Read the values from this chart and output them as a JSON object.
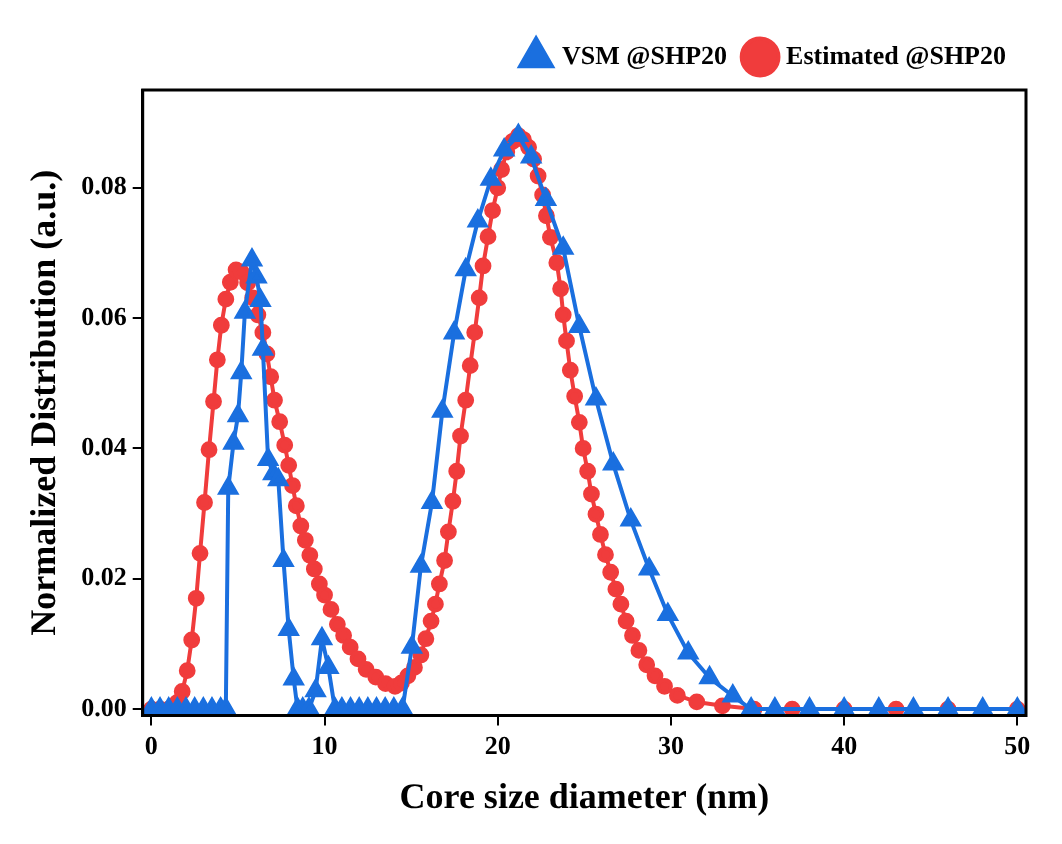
{
  "chart_data": {
    "type": "line",
    "xlabel": "Core size diameter (nm)",
    "ylabel": "Normalized Distribution (a.u.)",
    "xlim": [
      -0.5,
      50.5
    ],
    "xticks": [
      0,
      10,
      20,
      30,
      40,
      50
    ],
    "ylim": [
      -0.001,
      0.095
    ],
    "yticks": [
      {
        "value": 0,
        "label": "0.00"
      },
      {
        "value": 0.02,
        "label": "0.02"
      },
      {
        "value": 0.04,
        "label": "0.04"
      },
      {
        "value": 0.06,
        "label": "0.06"
      },
      {
        "value": 0.08,
        "label": "0.08"
      }
    ],
    "grid": false,
    "legend": "top right",
    "series": [
      {
        "name": "VSM @SHP20",
        "color": "#1a6fdf",
        "marker": "triangle",
        "x": [
          0,
          0.5,
          1,
          1.5,
          2,
          2.5,
          3,
          3.5,
          4,
          4.3,
          4.44,
          4.74,
          5.0,
          5.19,
          5.4,
          5.81,
          6.07,
          6.3,
          6.44,
          6.74,
          7.04,
          7.33,
          7.63,
          7.93,
          8.22,
          8.44,
          8.74,
          9.1,
          9.48,
          9.85,
          10.22,
          10.6,
          11,
          11.5,
          12,
          12.5,
          13,
          13.5,
          14,
          14.5,
          15.04,
          15.56,
          16.2,
          16.8,
          17.48,
          18.15,
          18.85,
          19.6,
          20.37,
          21.19,
          21.93,
          22.78,
          23.78,
          24.71,
          25.67,
          26.67,
          27.68,
          28.74,
          29.82,
          31.0,
          32.23,
          33.57,
          34.63,
          36,
          38,
          40,
          42,
          44,
          46,
          48,
          50
        ],
        "values": [
          0,
          0,
          0,
          0,
          0,
          0,
          0,
          0,
          0,
          0,
          0.0339,
          0.0408,
          0.045,
          0.0516,
          0.0609,
          0.0689,
          0.0663,
          0.0627,
          0.0552,
          0.0383,
          0.0361,
          0.0352,
          0.0228,
          0.0122,
          0.0046,
          0,
          0,
          0,
          0.0028,
          0.0108,
          0.0064,
          0,
          0,
          0,
          0,
          0,
          0,
          0,
          0,
          0,
          0.0095,
          0.0219,
          0.0317,
          0.0457,
          0.0577,
          0.0674,
          0.0749,
          0.0813,
          0.0858,
          0.088,
          0.0847,
          0.0782,
          0.0707,
          0.0587,
          0.0476,
          0.0376,
          0.029,
          0.0215,
          0.0145,
          0.0086,
          0.0048,
          0.002,
          0,
          0,
          0,
          0,
          0,
          0,
          0,
          0,
          0
        ]
      },
      {
        "name": "Estimated @SHP20",
        "color": "#f03c3c",
        "marker": "circle",
        "x": [
          0,
          0.5,
          1,
          1.48,
          1.78,
          2.07,
          2.33,
          2.59,
          2.81,
          3.07,
          3.33,
          3.59,
          3.81,
          4.04,
          4.3,
          4.56,
          4.89,
          5.19,
          5.56,
          5.85,
          6.15,
          6.44,
          6.67,
          6.89,
          7.11,
          7.41,
          7.7,
          7.93,
          8.15,
          8.37,
          8.63,
          8.89,
          9.15,
          9.41,
          9.7,
          10.0,
          10.37,
          10.74,
          11.1,
          11.48,
          11.93,
          12.4,
          12.96,
          13.52,
          14.07,
          14.44,
          14.81,
          15.19,
          15.56,
          15.85,
          16.15,
          16.4,
          16.63,
          16.93,
          17.15,
          17.41,
          17.63,
          17.85,
          18.15,
          18.41,
          18.67,
          18.93,
          19.15,
          19.44,
          19.7,
          20.0,
          20.22,
          20.52,
          20.85,
          21.19,
          21.48,
          21.78,
          22.07,
          22.33,
          22.59,
          22.81,
          23.04,
          23.41,
          23.63,
          23.78,
          23.97,
          24.19,
          24.44,
          24.71,
          24.93,
          25.19,
          25.41,
          25.67,
          25.93,
          26.22,
          26.52,
          26.82,
          27.11,
          27.41,
          27.78,
          28.15,
          28.6,
          29.08,
          29.63,
          30.37,
          31.49,
          32.97,
          34.8,
          37,
          40,
          43,
          46,
          50
        ],
        "values": [
          0,
          0,
          0,
          0.001,
          0.0027,
          0.0059,
          0.0106,
          0.017,
          0.0239,
          0.0317,
          0.0398,
          0.0472,
          0.0536,
          0.0589,
          0.0629,
          0.0655,
          0.0674,
          0.0671,
          0.0654,
          0.0631,
          0.0605,
          0.0578,
          0.0545,
          0.051,
          0.0474,
          0.0441,
          0.0405,
          0.0374,
          0.0343,
          0.0312,
          0.0281,
          0.0259,
          0.0236,
          0.0215,
          0.0192,
          0.0175,
          0.0153,
          0.013,
          0.0113,
          0.0095,
          0.0077,
          0.0061,
          0.0049,
          0.0039,
          0.0035,
          0.004,
          0.0051,
          0.0064,
          0.0083,
          0.0108,
          0.0135,
          0.0161,
          0.0192,
          0.0228,
          0.0272,
          0.0319,
          0.0365,
          0.0419,
          0.0474,
          0.0527,
          0.0578,
          0.0631,
          0.068,
          0.0725,
          0.0765,
          0.08,
          0.0828,
          0.0855,
          0.0871,
          0.088,
          0.0874,
          0.0862,
          0.0844,
          0.0818,
          0.0789,
          0.0757,
          0.0724,
          0.0685,
          0.0645,
          0.0605,
          0.0565,
          0.052,
          0.048,
          0.044,
          0.04,
          0.0365,
          0.033,
          0.0299,
          0.0268,
          0.0237,
          0.021,
          0.0184,
          0.0161,
          0.0135,
          0.0113,
          0.009,
          0.0068,
          0.0051,
          0.0035,
          0.0021,
          0.0011,
          0.0005,
          0,
          0,
          0,
          0,
          0,
          0
        ]
      }
    ]
  }
}
